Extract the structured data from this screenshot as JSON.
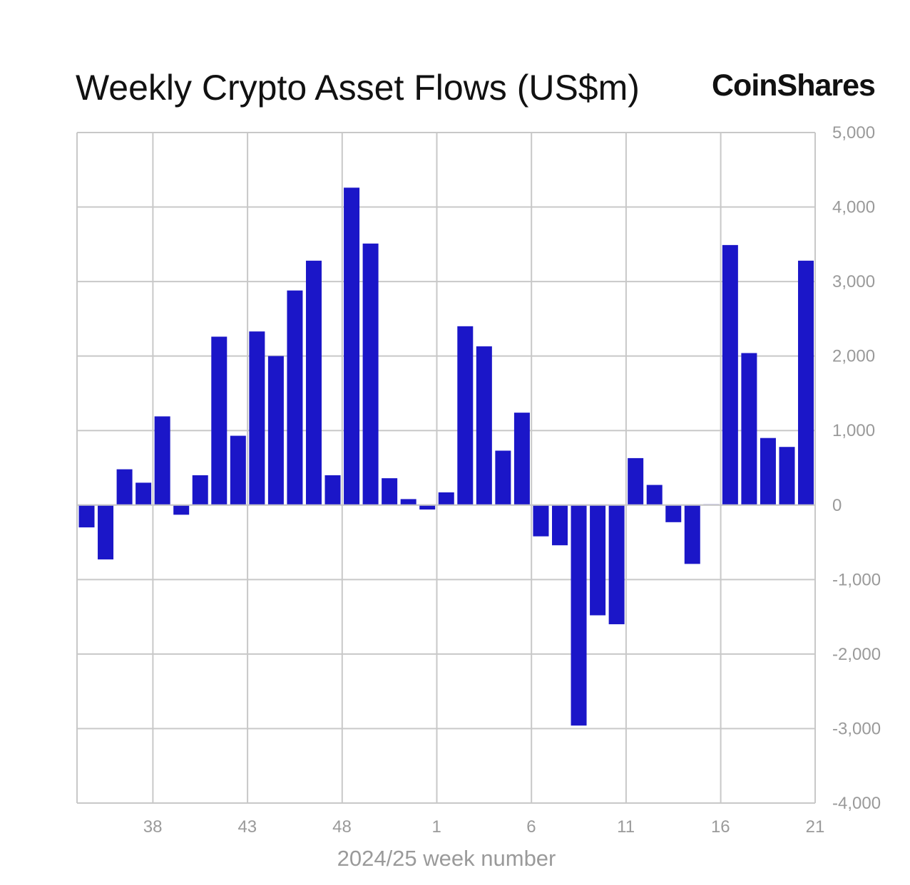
{
  "header": {
    "title": "Weekly Crypto Asset Flows (US$m)",
    "brand": "CoinShares"
  },
  "colors": {
    "bar": "#1b16c8",
    "grid": "#c8c8c8",
    "tick_text": "#9a9a9a",
    "title_text": "#111111"
  },
  "chart_data": {
    "type": "bar",
    "title": "Weekly Crypto Asset Flows (US$m)",
    "xlabel": "2024/25 week number",
    "ylabel": "",
    "ylim": [
      -4000,
      5000
    ],
    "yticks": [
      5000,
      4000,
      3000,
      2000,
      1000,
      0,
      -1000,
      -2000,
      -3000,
      -4000
    ],
    "ytick_labels": [
      "5,000",
      "4,000",
      "3,000",
      "2,000",
      "1,000",
      "0",
      "-1,000",
      "-2,000",
      "-3,000",
      "-4,000"
    ],
    "y_axis_position": "right",
    "grid": true,
    "xtick_labels": [
      {
        "label": "38",
        "week": 38
      },
      {
        "label": "43",
        "week": 43
      },
      {
        "label": "48",
        "week": 48
      },
      {
        "label": "1",
        "week": 1
      },
      {
        "label": "6",
        "week": 6
      },
      {
        "label": "11",
        "week": 11
      },
      {
        "label": "16",
        "week": 16
      },
      {
        "label": "21",
        "week": 21
      }
    ],
    "categories": [
      "35",
      "36",
      "37",
      "38",
      "39",
      "40",
      "41",
      "42",
      "43",
      "44",
      "45",
      "46",
      "47",
      "48",
      "49",
      "50",
      "51",
      "52",
      "1",
      "2",
      "3",
      "4",
      "5",
      "6",
      "7",
      "8",
      "9",
      "10",
      "11",
      "12",
      "13",
      "14",
      "15",
      "16",
      "17",
      "18",
      "19",
      "20",
      "21"
    ],
    "values": [
      -300,
      -730,
      480,
      300,
      1190,
      -130,
      400,
      2260,
      930,
      2330,
      2000,
      2880,
      3280,
      400,
      4260,
      3510,
      360,
      80,
      -60,
      170,
      2400,
      2130,
      730,
      1240,
      -420,
      -540,
      -2960,
      -1480,
      -1600,
      630,
      270,
      -230,
      -790,
      10,
      3490,
      2040,
      900,
      780,
      3280
    ]
  }
}
